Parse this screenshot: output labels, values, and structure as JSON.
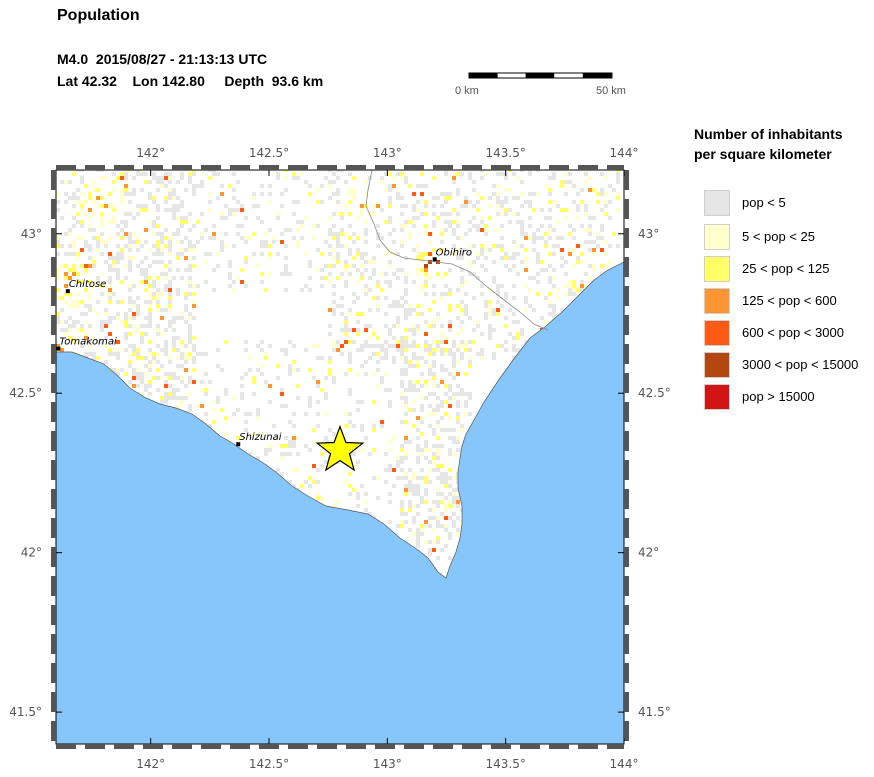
{
  "header": {
    "title": "Population",
    "event": {
      "magnitude": "M4.0",
      "datetime": "2015/08/27 - 21:13:13 UTC",
      "lat": "Lat 42.32",
      "lon": "Lon 142.80",
      "depth": "Depth  93.6 km"
    }
  },
  "scale_bar": {
    "left_label": "0 km",
    "right_label": "50 km"
  },
  "map": {
    "lon_range": [
      141.6,
      144.0
    ],
    "lat_range": [
      41.4,
      43.2
    ],
    "lon_ticks": [
      "142°",
      "142.5°",
      "143°",
      "143.5°",
      "144°"
    ],
    "lat_ticks": [
      "43°",
      "42.5°",
      "42°",
      "41.5°"
    ],
    "ocean_color": "#87c6fa",
    "land_color": "#ffffff",
    "epicenter": {
      "lon": 142.8,
      "lat": 42.32,
      "symbol": "star-icon",
      "color": "#ffff00"
    },
    "cities": [
      {
        "name": "Chitose",
        "lon": 141.65,
        "lat": 42.82
      },
      {
        "name": "Tomakomai",
        "lon": 141.61,
        "lat": 42.64
      },
      {
        "name": "Shizunai",
        "lon": 142.37,
        "lat": 42.34
      },
      {
        "name": "Obihiro",
        "lon": 143.2,
        "lat": 42.92
      }
    ]
  },
  "legend": {
    "title_line1": "Number of inhabitants",
    "title_line2": "per square kilometer",
    "items": [
      {
        "label": "pop < 5",
        "color": "#e6e6e6"
      },
      {
        "label": "5 < pop < 25",
        "color": "#ffffcc"
      },
      {
        "label": "25 < pop < 125",
        "color": "#ffff66"
      },
      {
        "label": "125 < pop < 600",
        "color": "#fc9632"
      },
      {
        "label": "600 < pop < 3000",
        "color": "#ff5a14"
      },
      {
        "label": "3000 < pop < 15000",
        "color": "#b4460f"
      },
      {
        "label": "pop > 15000",
        "color": "#d21414"
      }
    ]
  }
}
